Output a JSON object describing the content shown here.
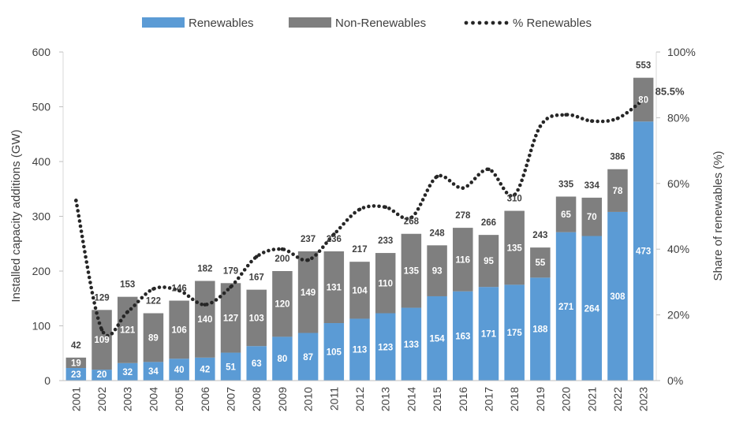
{
  "chart_data": {
    "type": "bar",
    "stacked": true,
    "categories": [
      "2001",
      "2002",
      "2003",
      "2004",
      "2005",
      "2006",
      "2007",
      "2008",
      "2009",
      "2010",
      "2011",
      "2012",
      "2013",
      "2014",
      "2015",
      "2016",
      "2017",
      "2018",
      "2019",
      "2020",
      "2021",
      "2022",
      "2023"
    ],
    "series": [
      {
        "name": "Renewables",
        "color": "#5B9BD5",
        "values": [
          23,
          20,
          32,
          34,
          40,
          42,
          51,
          63,
          80,
          87,
          105,
          113,
          123,
          133,
          154,
          163,
          171,
          175,
          188,
          271,
          264,
          308,
          473
        ]
      },
      {
        "name": "Non-Renewables",
        "color": "#7F7F7F",
        "values": [
          19,
          109,
          121,
          89,
          106,
          140,
          127,
          103,
          120,
          149,
          131,
          104,
          110,
          135,
          93,
          116,
          95,
          135,
          55,
          65,
          70,
          78,
          80
        ]
      }
    ],
    "totals": [
      42,
      129,
      153,
      122,
      146,
      182,
      179,
      167,
      200,
      237,
      236,
      217,
      233,
      268,
      248,
      278,
      266,
      310,
      243,
      335,
      334,
      386,
      553
    ],
    "line_series": {
      "name": "% Renewables",
      "color": "#262626",
      "axis": "right",
      "values": [
        54.8,
        15.5,
        20.9,
        27.9,
        27.4,
        23.1,
        28.5,
        37.7,
        40.0,
        36.7,
        44.5,
        52.1,
        52.8,
        49.6,
        62.1,
        58.6,
        64.3,
        56.5,
        77.4,
        80.9,
        79.0,
        79.8,
        85.5
      ],
      "last_label": "85.5%"
    },
    "ylabel": "Installed capacity additions (GW)",
    "ylabel_right": "Share of renewables (%)",
    "ylim": [
      0,
      600
    ],
    "yticks": [
      0,
      100,
      200,
      300,
      400,
      500,
      600
    ],
    "ylim_right": [
      0,
      100
    ],
    "yticks_right": [
      "0%",
      "20%",
      "40%",
      "60%",
      "80%",
      "100%"
    ],
    "legend": {
      "position": "top",
      "items": [
        "Renewables",
        "Non-Renewables",
        "% Renewables"
      ]
    },
    "grid": false
  }
}
